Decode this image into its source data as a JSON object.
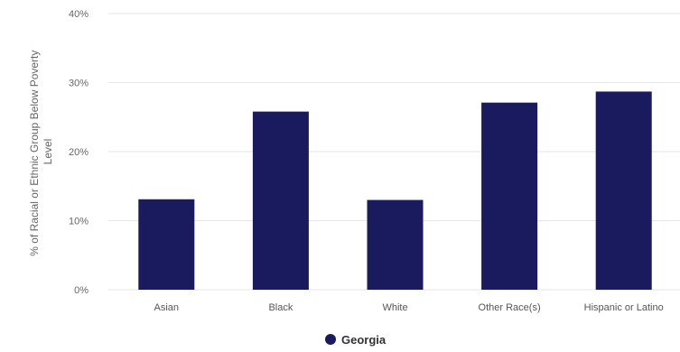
{
  "chart_data": {
    "type": "bar",
    "title": "",
    "xlabel": "",
    "ylabel_line1": "% of Racial or Ethnic Group Below Poverty",
    "ylabel_line2": "Level",
    "ylim": [
      0,
      40
    ],
    "yticks": [
      "0%",
      "10%",
      "20%",
      "30%",
      "40%"
    ],
    "ytick_values": [
      0,
      10,
      20,
      30,
      40
    ],
    "categories": [
      "Asian",
      "Black",
      "White",
      "Other Race(s)",
      "Hispanic or Latino"
    ],
    "series": [
      {
        "name": "Georgia",
        "color": "#1a1a5e",
        "values": [
          13.1,
          25.8,
          13.0,
          27.1,
          28.7
        ]
      }
    ],
    "grid": true,
    "legend_position": "bottom-center"
  }
}
